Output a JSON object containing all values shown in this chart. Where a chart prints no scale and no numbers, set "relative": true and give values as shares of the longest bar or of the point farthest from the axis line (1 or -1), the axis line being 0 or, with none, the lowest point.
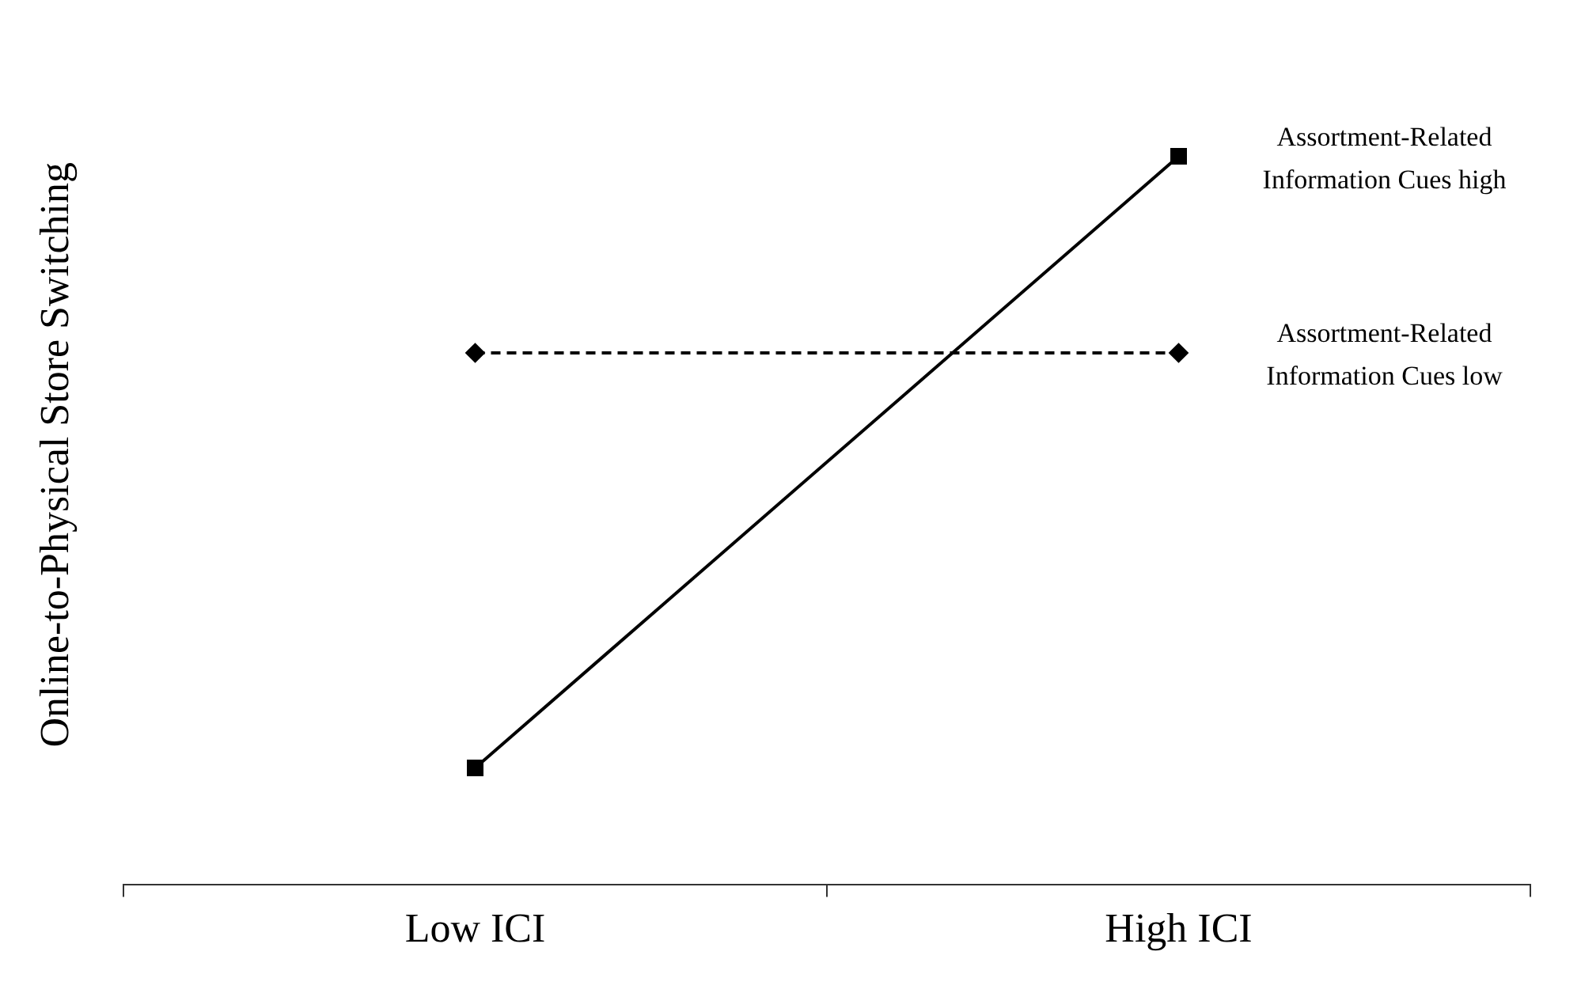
{
  "chart_data": {
    "type": "line",
    "ylabel": "Online-to-Physical Store Switching",
    "categories": [
      "Low ICI",
      "High ICI"
    ],
    "relative": true,
    "legend": false,
    "grid": false,
    "series": [
      {
        "name": "Assortment-Related Information Cues high",
        "color": "#000000",
        "values": [
          0.16,
          1
        ],
        "marker": "square",
        "line_style": "solid"
      },
      {
        "name": "Assortment-Related Information Cues low",
        "color": "#000000",
        "values": [
          0.73,
          0.73
        ],
        "marker": "diamond",
        "line_style": "dashed"
      }
    ]
  }
}
